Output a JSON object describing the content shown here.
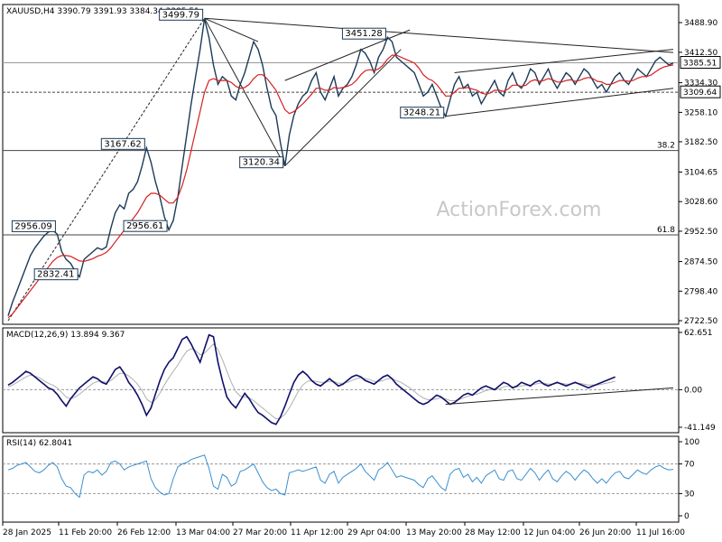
{
  "symbol": "XAUUSD,H4",
  "ohlc": "3390.79 3391.93 3384.34 3385.51",
  "watermark": "ActionForex.com",
  "x_ticks": [
    "28 Jan 2025",
    "11 Feb 20:00",
    "26 Feb 12:00",
    "13 Mar 04:00",
    "27 Mar 20:00",
    "11 Apr 12:00",
    "29 Apr 04:00",
    "13 May 20:00",
    "28 May 12:00",
    "12 Jun 04:00",
    "26 Jun 20:00",
    "11 Jul 16:00"
  ],
  "chart_data": [
    {
      "type": "line",
      "title": "XAUUSD,H4",
      "price_ticks": [
        "3488.90",
        "3412.50",
        "3334.30",
        "3258.10",
        "3182.50",
        "3104.65",
        "3028.60",
        "2952.50",
        "2874.50",
        "2798.40",
        "2722.50"
      ],
      "ylim": [
        2722.5,
        3488.9
      ],
      "current_price": "3385.51",
      "marked_level": "3309.64",
      "x": [
        0,
        5,
        10,
        15,
        20,
        25,
        30,
        35,
        40,
        45,
        50,
        55,
        60,
        65,
        70,
        75,
        80,
        85,
        90,
        95,
        100,
        105,
        110,
        115,
        120,
        125,
        130,
        135,
        140,
        145,
        150,
        155,
        160,
        165,
        170,
        175,
        180,
        185,
        190,
        195,
        200,
        205,
        210,
        215,
        220,
        225,
        230,
        235,
        240,
        245,
        250,
        255,
        260,
        265,
        270,
        275,
        280,
        285,
        290,
        295,
        300,
        305,
        310,
        315,
        320,
        325,
        330,
        335,
        340,
        345,
        350,
        355,
        360,
        365,
        370,
        375,
        380,
        385,
        390,
        395,
        400,
        405,
        410,
        415,
        420,
        425,
        430,
        435,
        440,
        445,
        450,
        455,
        460,
        465,
        470,
        475,
        480,
        485,
        490,
        495,
        500,
        505,
        510,
        515,
        520,
        525,
        530,
        535,
        540,
        545,
        550,
        555,
        560,
        565,
        570,
        575,
        580,
        585,
        590,
        595,
        600,
        605,
        610,
        615,
        620,
        625,
        630,
        635,
        640,
        645,
        650,
        655,
        660,
        665,
        670,
        675,
        680,
        685,
        690,
        695,
        700,
        705,
        710,
        715,
        720,
        725,
        730,
        735,
        740,
        745
      ],
      "price": [
        2735,
        2770,
        2800,
        2830,
        2860,
        2890,
        2910,
        2925,
        2940,
        2950,
        2955,
        2945,
        2900,
        2880,
        2870,
        2850,
        2835,
        2880,
        2890,
        2900,
        2910,
        2905,
        2912,
        2960,
        3000,
        3020,
        3010,
        3050,
        3060,
        3080,
        3120,
        3167,
        3130,
        3080,
        3040,
        2990,
        2956,
        2980,
        3040,
        3120,
        3200,
        3280,
        3350,
        3420,
        3499,
        3450,
        3380,
        3330,
        3350,
        3340,
        3300,
        3290,
        3330,
        3360,
        3400,
        3440,
        3420,
        3380,
        3320,
        3270,
        3250,
        3180,
        3120,
        3200,
        3250,
        3280,
        3300,
        3310,
        3340,
        3360,
        3310,
        3290,
        3320,
        3350,
        3300,
        3320,
        3330,
        3350,
        3380,
        3420,
        3410,
        3390,
        3360,
        3400,
        3420,
        3451,
        3440,
        3400,
        3390,
        3380,
        3370,
        3360,
        3330,
        3300,
        3310,
        3330,
        3300,
        3270,
        3248,
        3290,
        3330,
        3350,
        3320,
        3330,
        3300,
        3310,
        3280,
        3300,
        3320,
        3340,
        3310,
        3300,
        3340,
        3360,
        3330,
        3320,
        3340,
        3370,
        3360,
        3330,
        3350,
        3370,
        3340,
        3320,
        3340,
        3360,
        3350,
        3330,
        3350,
        3370,
        3360,
        3340,
        3320,
        3330,
        3310,
        3330,
        3350,
        3360,
        3340,
        3330,
        3350,
        3370,
        3360,
        3350,
        3370,
        3390,
        3400,
        3390,
        3380,
        3385
      ],
      "ma_price": [
        2730,
        2740,
        2755,
        2770,
        2785,
        2800,
        2815,
        2830,
        2845,
        2860,
        2875,
        2885,
        2890,
        2890,
        2888,
        2882,
        2876,
        2875,
        2878,
        2882,
        2888,
        2892,
        2898,
        2910,
        2925,
        2940,
        2955,
        2970,
        2985,
        3000,
        3020,
        3040,
        3050,
        3050,
        3045,
        3035,
        3025,
        3025,
        3040,
        3070,
        3110,
        3160,
        3210,
        3260,
        3310,
        3340,
        3345,
        3340,
        3340,
        3340,
        3335,
        3325,
        3320,
        3322,
        3330,
        3345,
        3355,
        3355,
        3345,
        3330,
        3315,
        3290,
        3265,
        3255,
        3260,
        3270,
        3280,
        3292,
        3305,
        3320,
        3320,
        3315,
        3315,
        3322,
        3320,
        3322,
        3325,
        3330,
        3340,
        3355,
        3365,
        3368,
        3365,
        3370,
        3380,
        3395,
        3405,
        3405,
        3400,
        3395,
        3390,
        3385,
        3372,
        3355,
        3345,
        3340,
        3330,
        3315,
        3300,
        3300,
        3310,
        3320,
        3320,
        3322,
        3318,
        3315,
        3308,
        3305,
        3308,
        3315,
        3315,
        3312,
        3318,
        3328,
        3328,
        3325,
        3328,
        3338,
        3342,
        3338,
        3340,
        3345,
        3342,
        3336,
        3336,
        3340,
        3342,
        3338,
        3340,
        3345,
        3348,
        3345,
        3338,
        3336,
        3330,
        3330,
        3335,
        3340,
        3340,
        3338,
        3340,
        3346,
        3350,
        3350,
        3354,
        3362,
        3370,
        3375,
        3378,
        3380
      ],
      "labels": [
        {
          "text": "3499.79",
          "x": 44,
          "y": 3499.79
        },
        {
          "text": "3451.28",
          "x": 85,
          "y": 3451.28
        },
        {
          "text": "3167.62",
          "x": 31,
          "y": 3167.62
        },
        {
          "text": "3120.34",
          "x": 62,
          "y": 3120.34
        },
        {
          "text": "2956.61",
          "x": 36,
          "y": 2956.61
        },
        {
          "text": "2956.09",
          "x": 11,
          "y": 2956.09
        },
        {
          "text": "2832.41",
          "x": 16,
          "y": 2832.41
        },
        {
          "text": "3248.21",
          "x": 98,
          "y": 3248.21
        }
      ],
      "fib_labels": [
        {
          "text": "38.2",
          "y": 3160
        },
        {
          "text": "61.8",
          "y": 2943
        }
      ],
      "horizontal_levels": [
        3385.51,
        3309.64,
        3160,
        2943
      ]
    },
    {
      "type": "line",
      "title": "MACD(12,26,9) 13.894 9.367",
      "ticks": [
        "62.651",
        "0.00",
        "-41.149"
      ],
      "ylim": [
        -41.149,
        62.651
      ],
      "macd": [
        5,
        8,
        12,
        16,
        20,
        18,
        14,
        10,
        6,
        2,
        0,
        -5,
        -12,
        -18,
        -10,
        -4,
        2,
        6,
        10,
        14,
        12,
        8,
        6,
        14,
        22,
        25,
        18,
        8,
        2,
        -6,
        -16,
        -28,
        -20,
        -5,
        10,
        22,
        30,
        35,
        45,
        55,
        58,
        50,
        40,
        30,
        45,
        60,
        58,
        30,
        10,
        -8,
        -15,
        -20,
        -12,
        -4,
        -10,
        -18,
        -25,
        -28,
        -32,
        -36,
        -38,
        -30,
        -18,
        -5,
        8,
        16,
        20,
        16,
        10,
        6,
        4,
        8,
        12,
        8,
        4,
        6,
        10,
        14,
        16,
        14,
        10,
        8,
        6,
        10,
        14,
        16,
        12,
        6,
        2,
        -2,
        -6,
        -10,
        -14,
        -16,
        -14,
        -10,
        -6,
        -8,
        -12,
        -16,
        -14,
        -10,
        -6,
        -4,
        -6,
        -2,
        2,
        4,
        2,
        0,
        4,
        8,
        6,
        2,
        4,
        8,
        6,
        4,
        8,
        10,
        6,
        4,
        6,
        8,
        6,
        4,
        6,
        8,
        6,
        4,
        2,
        4,
        6,
        8,
        10,
        12,
        13.9
      ],
      "signal": [
        3,
        5,
        8,
        11,
        14,
        16,
        15,
        13,
        10,
        7,
        5,
        2,
        -3,
        -8,
        -10,
        -8,
        -5,
        -1,
        3,
        7,
        9,
        9,
        8,
        10,
        14,
        18,
        18,
        15,
        11,
        6,
        -1,
        -10,
        -14,
        -11,
        -4,
        5,
        13,
        20,
        27,
        35,
        42,
        45,
        43,
        38,
        40,
        45,
        50,
        44,
        33,
        20,
        8,
        -2,
        -7,
        -8,
        -9,
        -12,
        -16,
        -20,
        -24,
        -28,
        -32,
        -31,
        -27,
        -20,
        -11,
        -2,
        5,
        9,
        10,
        9,
        8,
        8,
        9,
        9,
        7,
        7,
        8,
        10,
        12,
        13,
        12,
        11,
        9,
        9,
        10,
        12,
        12,
        10,
        8,
        5,
        2,
        -2,
        -6,
        -9,
        -11,
        -11,
        -10,
        -9,
        -10,
        -12,
        -12,
        -11,
        -9,
        -7,
        -6,
        -5,
        -3,
        -1,
        0,
        0,
        1,
        3,
        4,
        3,
        3,
        4,
        5,
        5,
        6,
        7,
        7,
        6,
        6,
        7,
        7,
        6,
        6,
        7,
        7,
        6,
        5,
        5,
        5,
        6,
        7,
        8,
        9.4
      ]
    },
    {
      "type": "line",
      "title": "RSI(14) 62.8041",
      "ticks": [
        "100",
        "70",
        "30",
        "0"
      ],
      "ylim": [
        0,
        100
      ],
      "rsi_base": [
        62,
        64,
        68,
        70,
        72,
        66,
        60,
        58,
        62,
        68,
        72,
        66,
        50,
        40,
        38,
        30,
        25,
        55,
        60,
        58,
        62,
        55,
        60,
        72,
        74,
        70,
        62,
        66,
        68,
        70,
        72,
        74,
        50,
        38,
        32,
        28,
        30,
        50,
        66,
        70,
        72,
        76,
        78,
        80,
        82,
        64,
        40,
        36,
        56,
        52,
        40,
        44,
        60,
        62,
        66,
        70,
        58,
        46,
        38,
        34,
        36,
        30,
        28,
        58,
        60,
        62,
        60,
        62,
        64,
        66,
        48,
        44,
        56,
        60,
        44,
        52,
        56,
        60,
        64,
        70,
        60,
        54,
        48,
        62,
        66,
        72,
        62,
        52,
        54,
        52,
        50,
        48,
        42,
        38,
        50,
        54,
        46,
        38,
        34,
        56,
        62,
        64,
        52,
        56,
        46,
        52,
        44,
        54,
        58,
        62,
        50,
        48,
        60,
        62,
        50,
        48,
        56,
        64,
        58,
        48,
        56,
        62,
        50,
        46,
        54,
        60,
        56,
        48,
        56,
        62,
        58,
        50,
        44,
        50,
        44,
        52,
        58,
        60,
        52,
        50,
        56,
        62,
        58,
        56,
        62,
        66,
        68,
        64,
        62,
        62.8
      ]
    }
  ]
}
